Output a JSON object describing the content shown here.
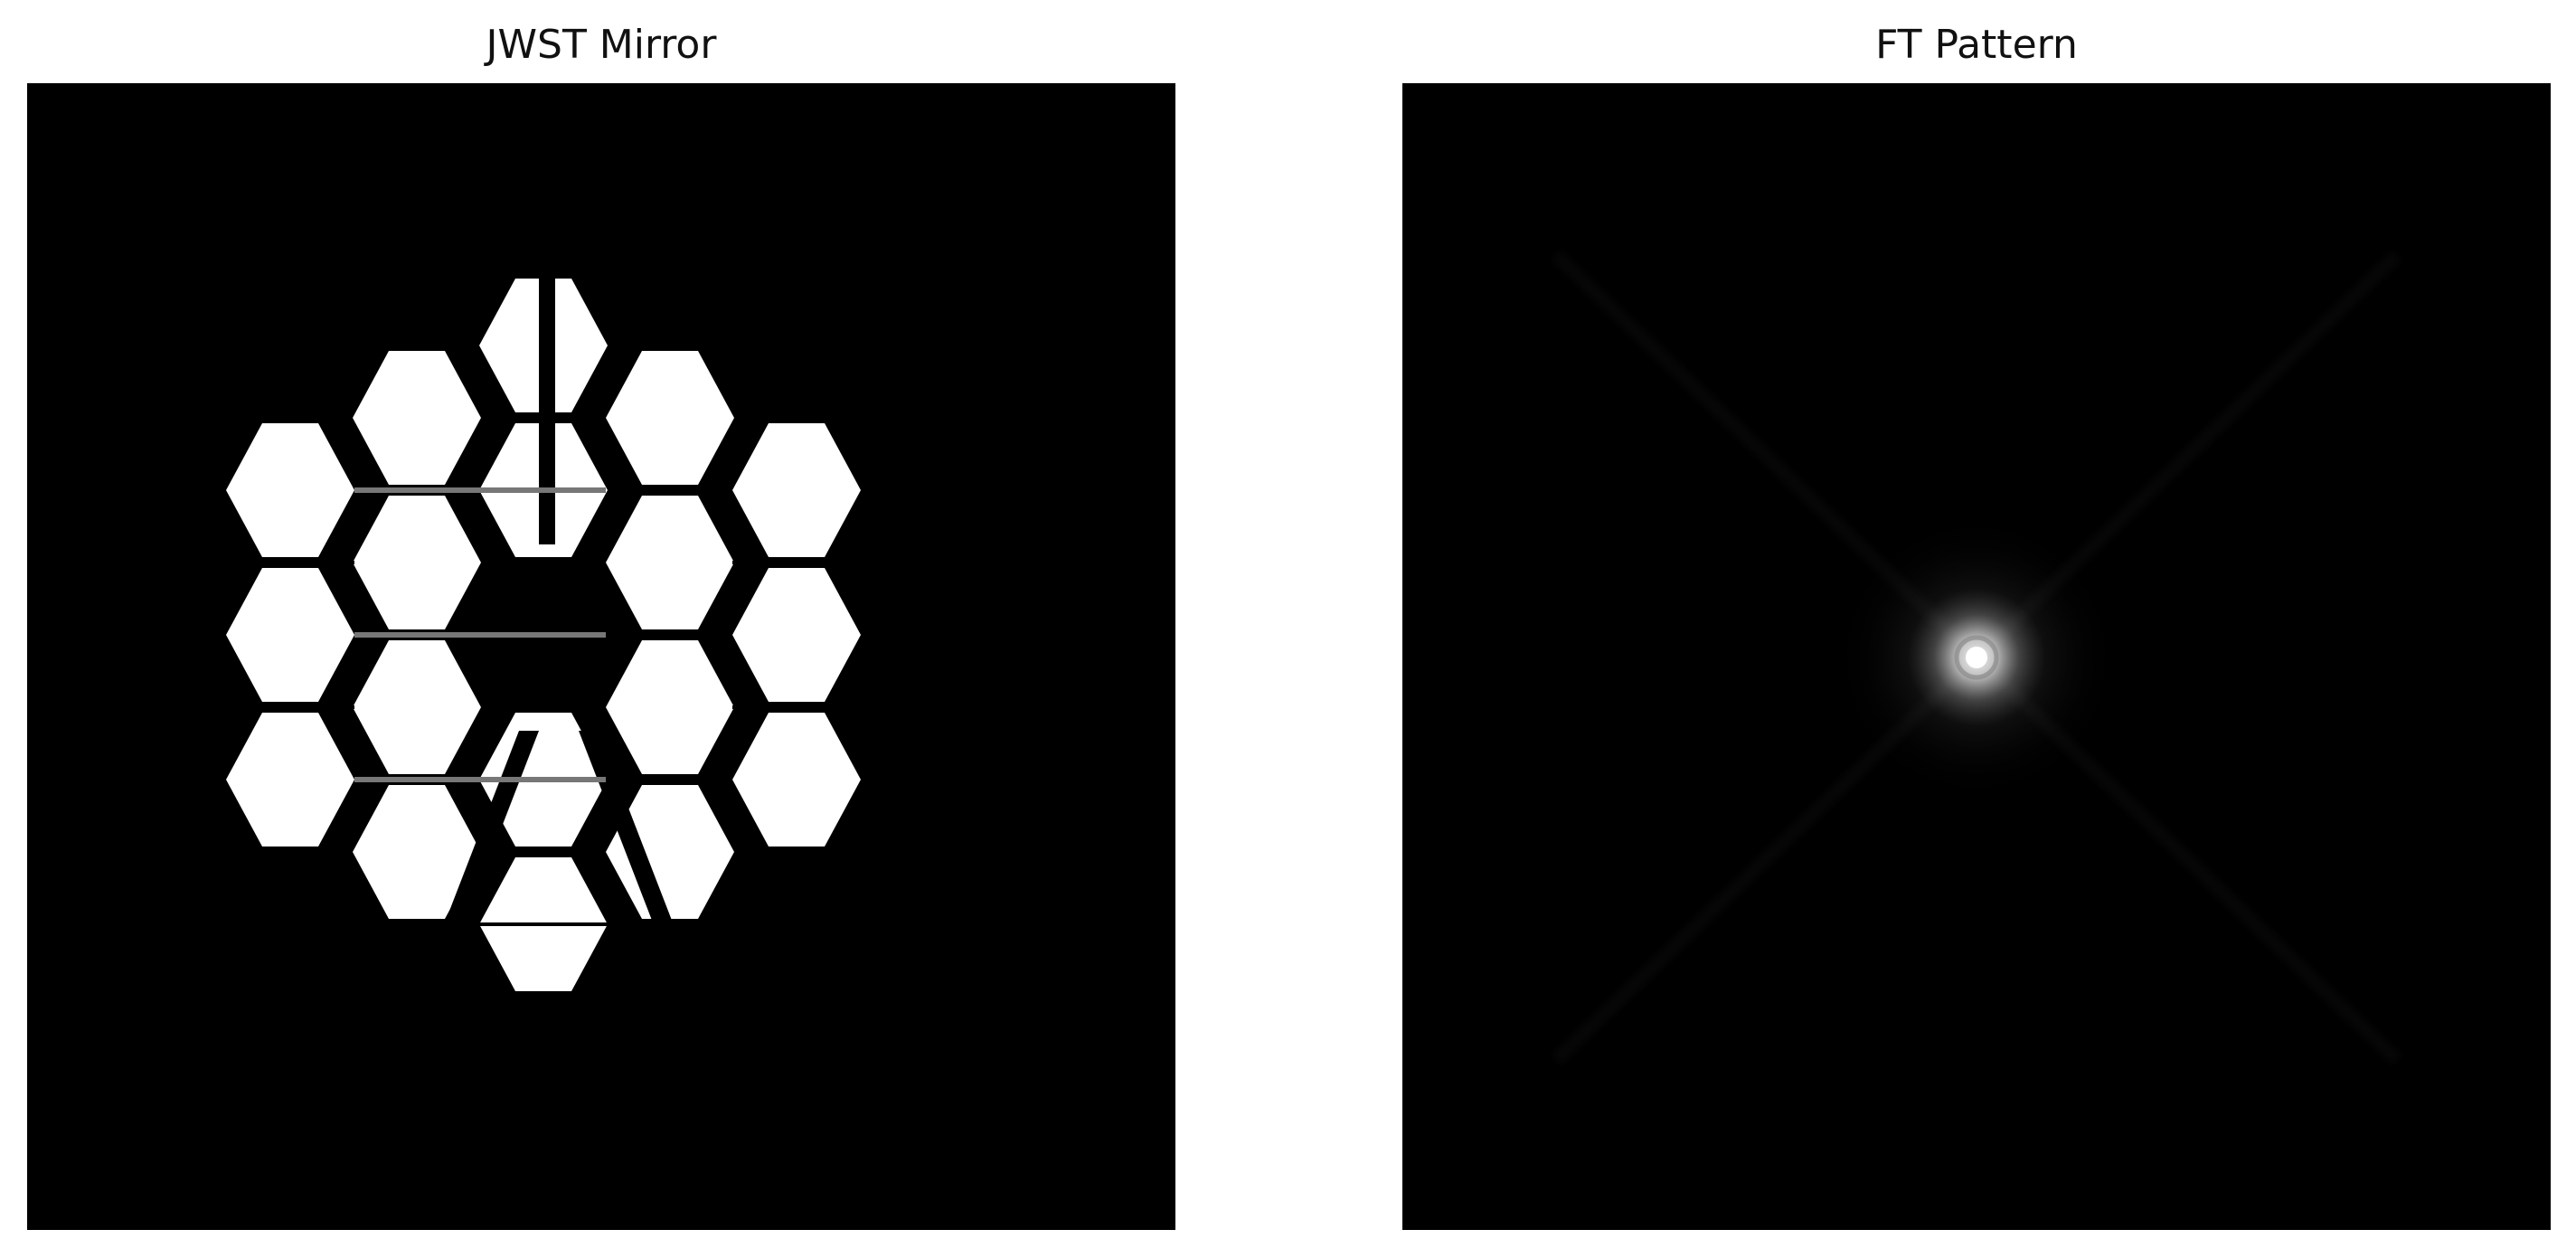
{
  "panels": {
    "left": {
      "title": "JWST Mirror"
    },
    "right": {
      "title": "FT Pattern"
    }
  },
  "colors": {
    "background": "#000000",
    "mirror": "#ffffff",
    "seam_dark": "#000000",
    "seam_gray": "#777777",
    "psf_core": "#ffffff",
    "psf_glow": "#6f6f6f"
  }
}
